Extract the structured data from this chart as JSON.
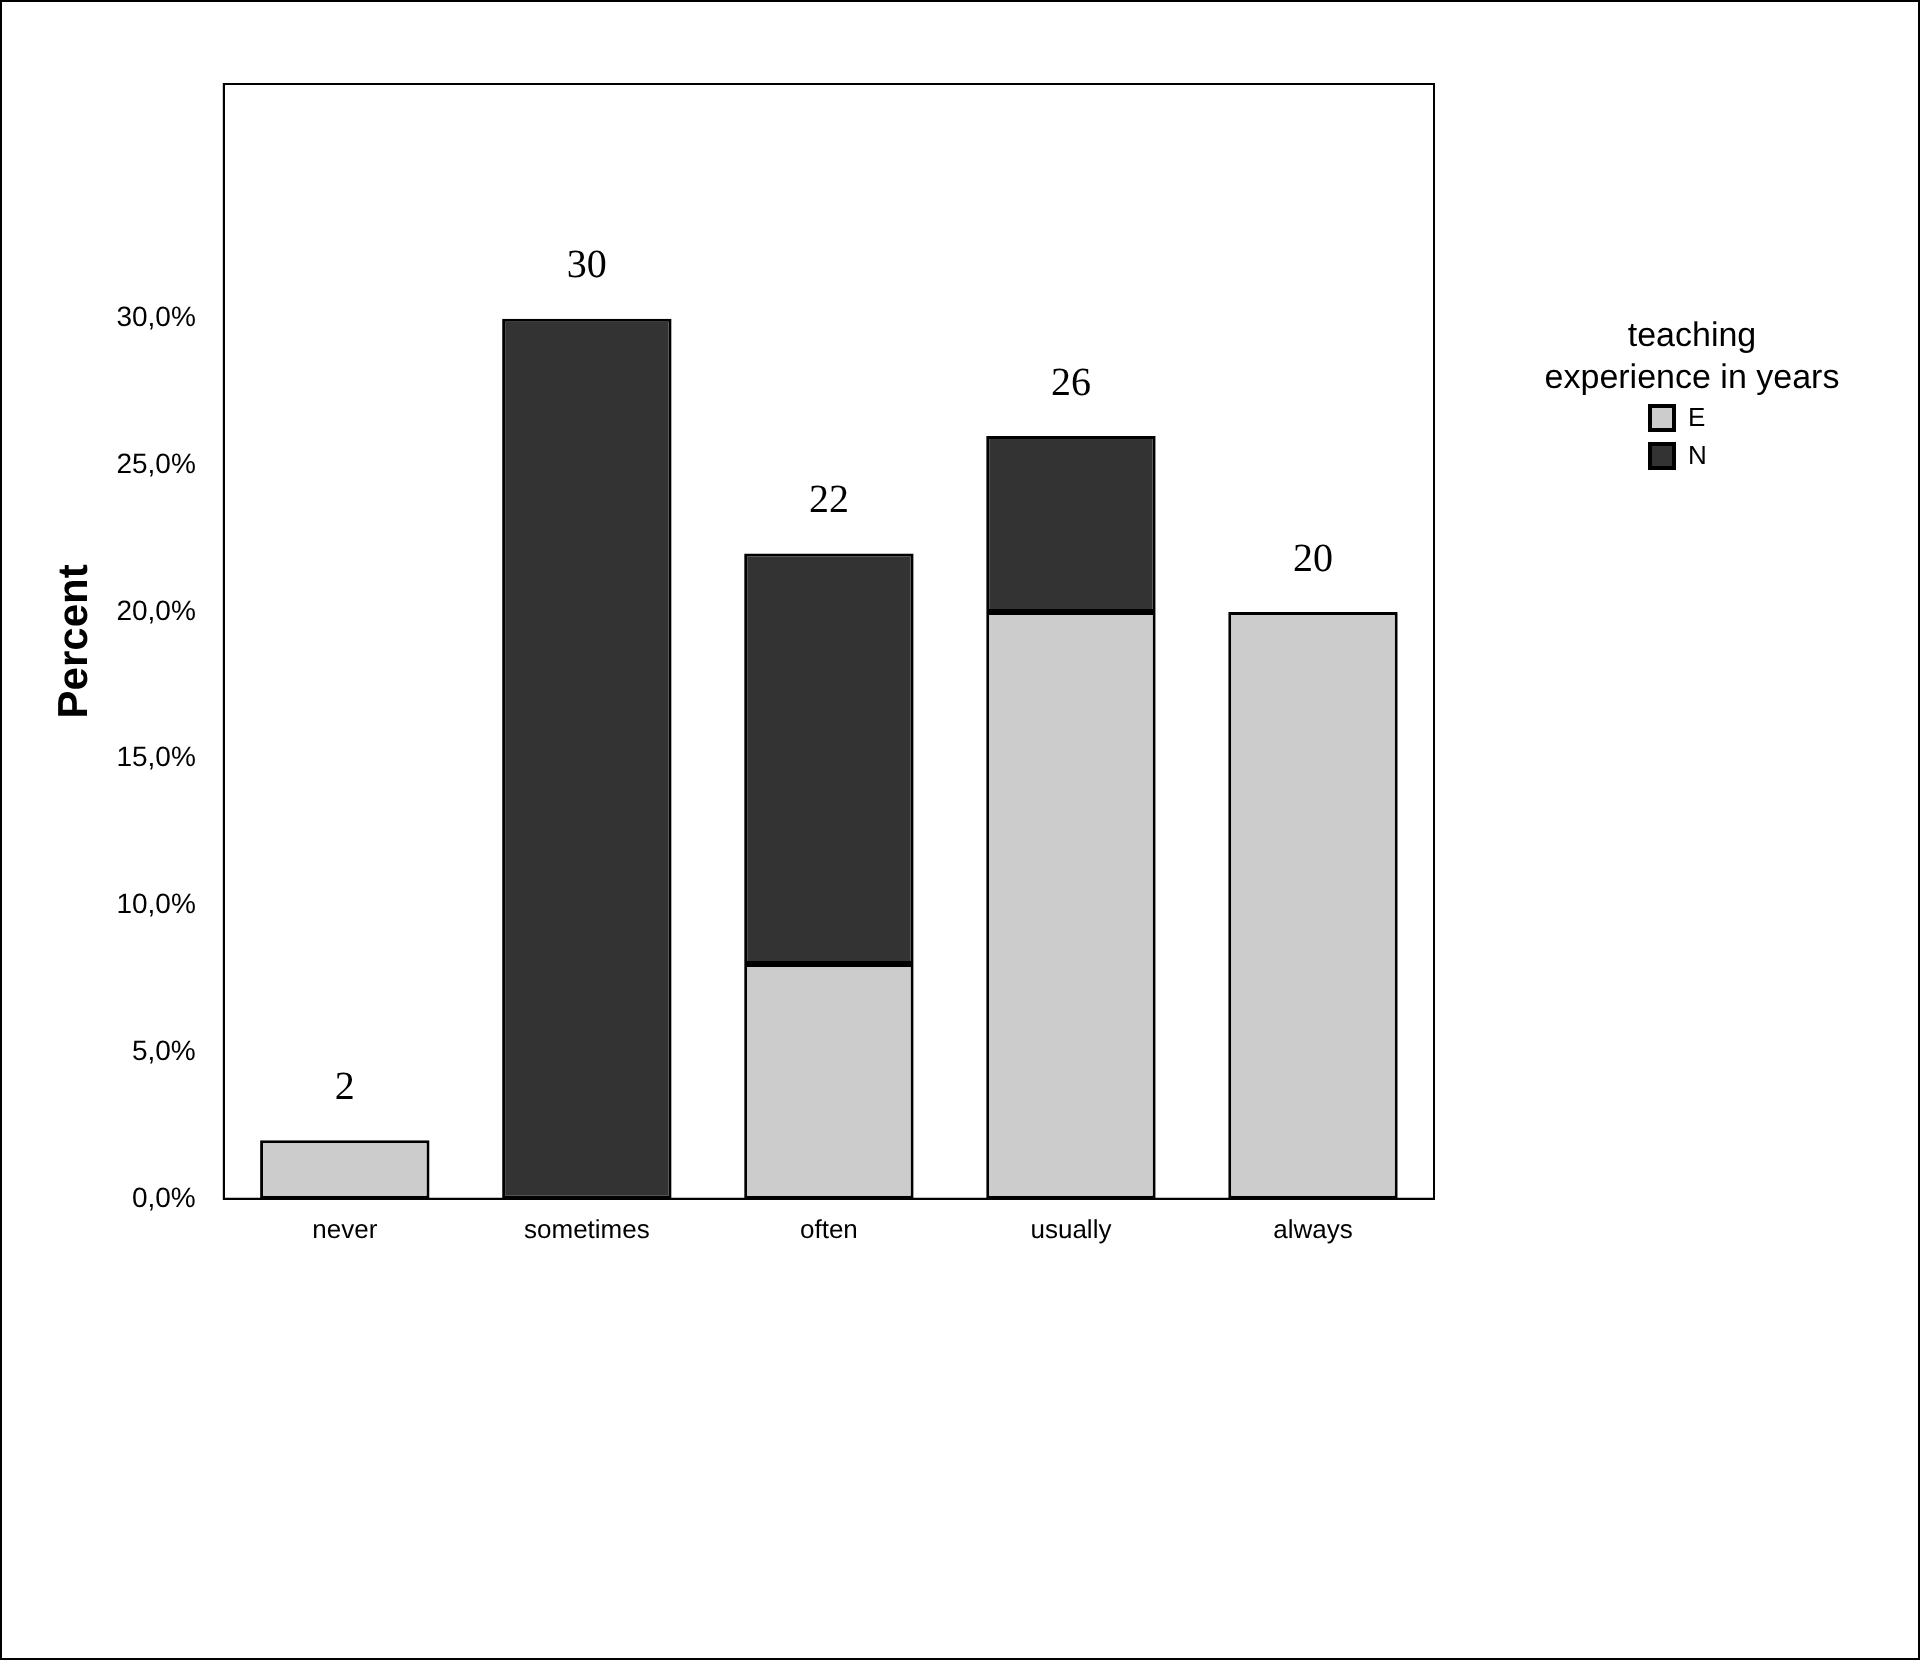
{
  "chart_data": {
    "type": "bar",
    "stacked": true,
    "ylabel": "Percent",
    "legend_title": "teaching experience in years",
    "legend": "right",
    "categories": [
      "never",
      "sometimes",
      "often",
      "usually",
      "always"
    ],
    "series": [
      {
        "name": "E",
        "color": "#cccccc",
        "values": [
          2,
          0,
          8,
          20,
          20
        ]
      },
      {
        "name": "N",
        "color": "#333333",
        "values": [
          0,
          30,
          14,
          6,
          0
        ]
      }
    ],
    "totals": [
      "2",
      "30",
      "22",
      "26",
      "20"
    ],
    "ylim": [
      0,
      38
    ],
    "yticks": [
      {
        "value": 0,
        "label": "0,0%"
      },
      {
        "value": 5,
        "label": "5,0%"
      },
      {
        "value": 10,
        "label": "10,0%"
      },
      {
        "value": 15,
        "label": "15,0%"
      },
      {
        "value": 20,
        "label": "20,0%"
      },
      {
        "value": 25,
        "label": "25,0%"
      },
      {
        "value": 30,
        "label": "30,0%"
      }
    ],
    "grid": false
  }
}
